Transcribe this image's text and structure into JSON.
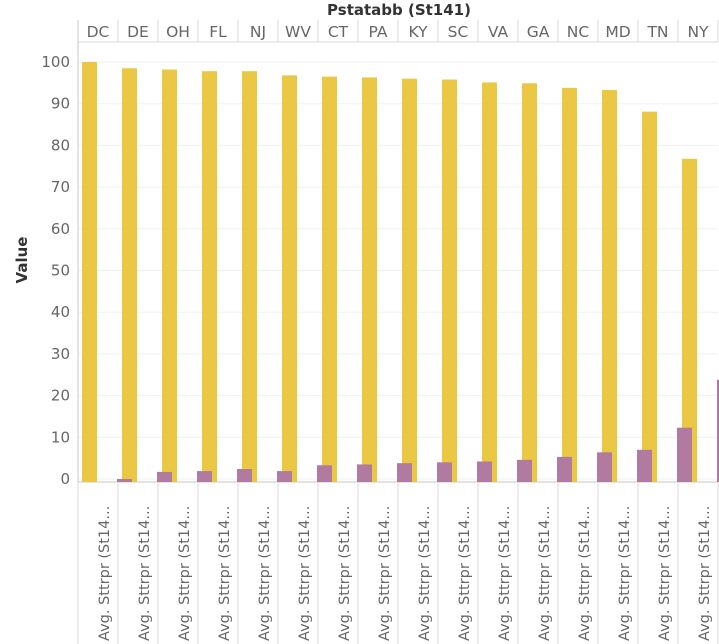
{
  "chart_data": {
    "type": "bar",
    "title": "Pstatabb (St141)",
    "ylabel": "Value",
    "ylim": [
      0,
      100
    ],
    "yticks": [
      0,
      10,
      20,
      30,
      40,
      50,
      60,
      70,
      80,
      90,
      100
    ],
    "grid": true,
    "legend": "none",
    "categories": [
      "DC",
      "DE",
      "OH",
      "FL",
      "NJ",
      "WV",
      "CT",
      "PA",
      "KY",
      "SC",
      "VA",
      "GA",
      "NC",
      "MD",
      "TN",
      "NY"
    ],
    "measure_label": "Avg. Sttrpr (St14...",
    "series": [
      {
        "color": "#EBC844",
        "values": [
          100.0,
          98.5,
          98.2,
          97.8,
          97.8,
          96.8,
          96.5,
          96.3,
          96.0,
          95.8,
          95.1,
          94.9,
          93.8,
          93.3,
          88.1,
          76.8
        ]
      },
      {
        "color": "#B07AA1",
        "values": [
          0.0,
          1.7,
          1.9,
          2.4,
          1.9,
          3.3,
          3.5,
          3.8,
          4.0,
          4.2,
          4.6,
          5.3,
          6.4,
          7.0,
          12.3,
          23.8
        ]
      }
    ]
  }
}
